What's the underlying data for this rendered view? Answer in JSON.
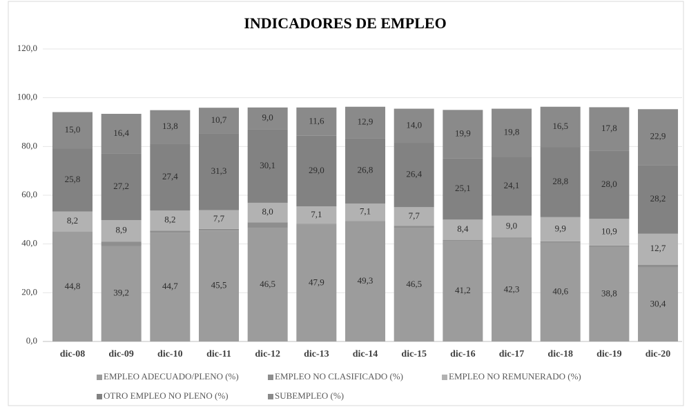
{
  "chart_data": {
    "type": "stacked_bar",
    "title": "INDICADORES  DE EMPLEO",
    "categories": [
      "dic-08",
      "dic-09",
      "dic-10",
      "dic-11",
      "dic-12",
      "dic-13",
      "dic-14",
      "dic-15",
      "dic-16",
      "dic-17",
      "dic-18",
      "dic-19",
      "dic-20"
    ],
    "series": [
      {
        "name": "EMPLEO ADECUADO/PLENO (%)",
        "color": "#9c9c9c",
        "values": [
          44.8,
          39.2,
          44.7,
          45.5,
          46.5,
          47.9,
          49.3,
          46.5,
          41.2,
          42.3,
          40.6,
          38.8,
          30.4
        ],
        "value_labels": [
          "44,8",
          "39,2",
          "44,7",
          "45,5",
          "46,5",
          "47,9",
          "49,3",
          "46,5",
          "41,2",
          "42,3",
          "40,6",
          "38,8",
          "30,4"
        ]
      },
      {
        "name": "EMPLEO NO CLASIFICADO (%)",
        "color": "#8e8e8e",
        "values": [
          0.3,
          1.7,
          0.8,
          0.7,
          2.4,
          0.4,
          0.2,
          0.9,
          0.4,
          0.3,
          0.5,
          0.6,
          1.1
        ]
      },
      {
        "name": "EMPLEO NO REMUNERADO (%)",
        "color": "#b2b2b2",
        "values": [
          8.2,
          8.9,
          8.2,
          7.7,
          8.0,
          7.1,
          7.1,
          7.7,
          8.4,
          9.0,
          9.9,
          10.9,
          12.7
        ],
        "value_labels": [
          "8,2",
          "8,9",
          "8,2",
          "7,7",
          "8,0",
          "7,1",
          "7,1",
          "7,7",
          "8,4",
          "9,0",
          "9,9",
          "10,9",
          "12,7"
        ]
      },
      {
        "name": "OTRO EMPLEO NO PLENO (%)",
        "color": "#828282",
        "values": [
          25.8,
          27.2,
          27.4,
          31.3,
          30.1,
          29.0,
          26.8,
          26.4,
          25.1,
          24.1,
          28.8,
          28.0,
          28.2
        ],
        "value_labels": [
          "25,8",
          "27,2",
          "27,4",
          "31,3",
          "30,1",
          "29,0",
          "26,8",
          "26,4",
          "25,1",
          "24,1",
          "28,8",
          "28,0",
          "28,2"
        ]
      },
      {
        "name": "SUBEMPLEO (%)",
        "color": "#8a8a8a",
        "values": [
          15.0,
          16.4,
          13.8,
          10.7,
          9.0,
          11.6,
          12.9,
          14.0,
          19.9,
          19.8,
          16.5,
          17.8,
          22.9
        ],
        "value_labels": [
          "15,0",
          "16,4",
          "13,8",
          "10,7",
          "9,0",
          "11,6",
          "12,9",
          "14,0",
          "19,9",
          "19,8",
          "16,5",
          "17,8",
          "22,9"
        ]
      }
    ],
    "ylim": [
      0,
      120
    ],
    "yticks": [
      {
        "value": 0,
        "label": "0,0"
      },
      {
        "value": 20,
        "label": "20,0"
      },
      {
        "value": 40,
        "label": "40,0"
      },
      {
        "value": 60,
        "label": "60,0"
      },
      {
        "value": 80,
        "label": "80,0"
      },
      {
        "value": 100,
        "label": "100,0"
      },
      {
        "value": 120,
        "label": "120,0"
      }
    ],
    "grid": true
  }
}
